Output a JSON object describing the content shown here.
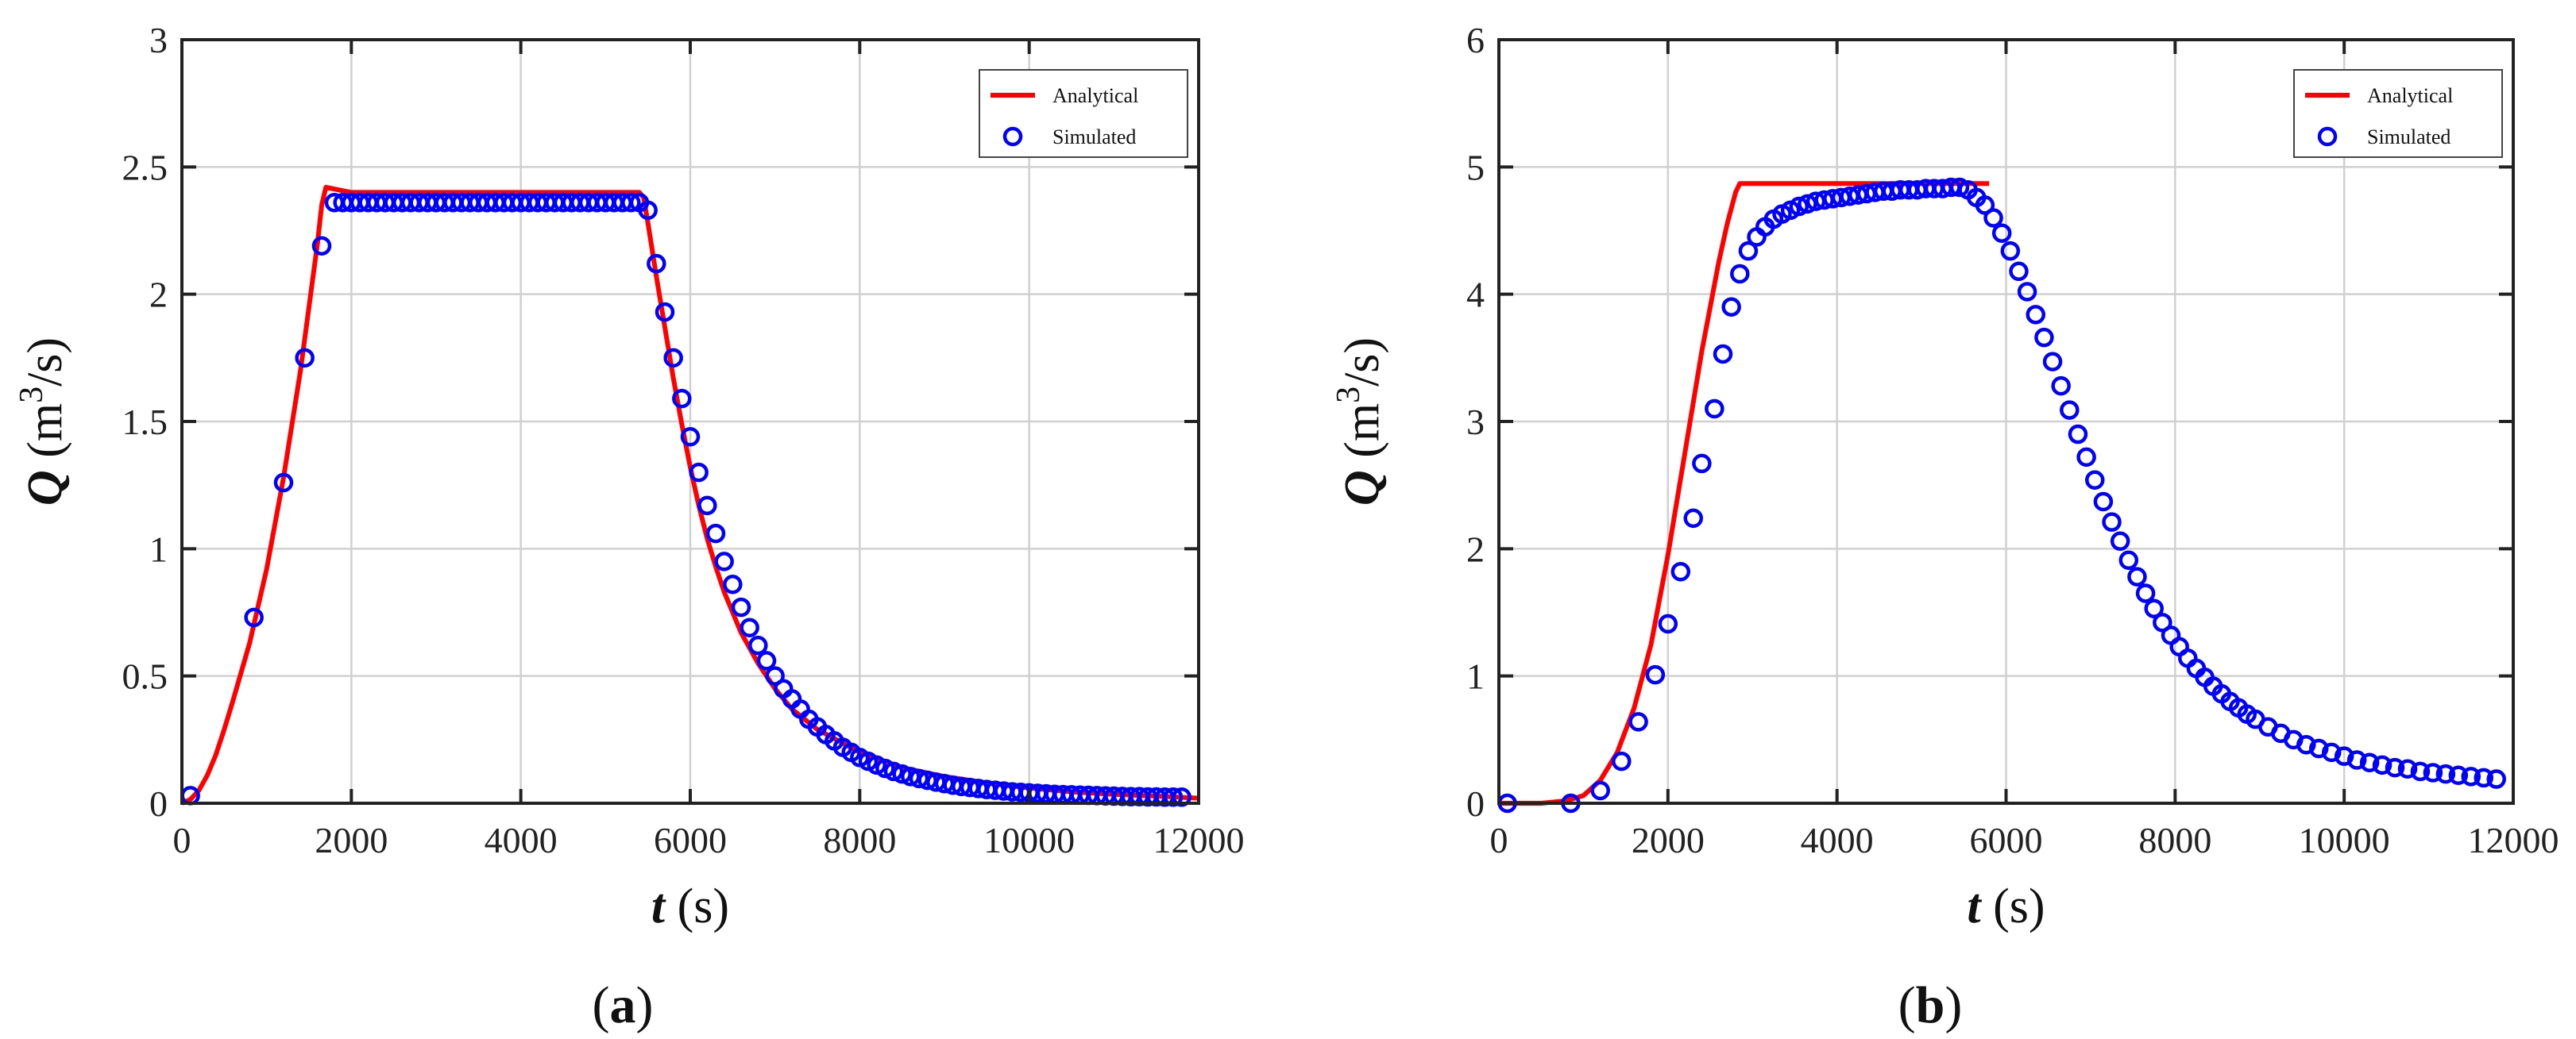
{
  "figure": {
    "panels": [
      {
        "caption": "a"
      },
      {
        "caption": "b"
      }
    ]
  },
  "chart_data": [
    {
      "type": "line",
      "panel_label": "(a)",
      "xlabel": {
        "var": "t",
        "unit": "(s)"
      },
      "ylabel": {
        "var": "Q",
        "unit_pre": "(m",
        "unit_sup": "3",
        "unit_post": "/s)"
      },
      "xlim": [
        0,
        12000
      ],
      "ylim": [
        0,
        3
      ],
      "xticks": [
        0,
        2000,
        4000,
        6000,
        8000,
        10000,
        12000
      ],
      "yticks": [
        0,
        0.5,
        1,
        1.5,
        2,
        2.5,
        3
      ],
      "ytick_labels": [
        "0",
        "0.5",
        "1",
        "1.5",
        "2",
        "2.5",
        "3"
      ],
      "grid": true,
      "legend_position": "top-right",
      "series": [
        {
          "name": "Analytical",
          "style": "line",
          "color": "#ff0000",
          "x": [
            0,
            100,
            200,
            300,
            400,
            500,
            600,
            800,
            1000,
            1200,
            1400,
            1600,
            1650,
            1700,
            2000,
            3000,
            4000,
            5000,
            5400,
            5450,
            5500,
            5600,
            5700,
            5800,
            5900,
            6000,
            6100,
            6200,
            6300,
            6400,
            6600,
            6800,
            7000,
            7200,
            7500,
            8000,
            8500,
            9000,
            9500,
            10000,
            10500,
            11000,
            11500,
            12000
          ],
          "y": [
            0,
            0.015,
            0.05,
            0.11,
            0.19,
            0.29,
            0.4,
            0.63,
            0.92,
            1.28,
            1.7,
            2.2,
            2.35,
            2.42,
            2.4,
            2.4,
            2.4,
            2.4,
            2.4,
            2.38,
            2.28,
            2.07,
            1.87,
            1.67,
            1.49,
            1.32,
            1.17,
            1.04,
            0.93,
            0.83,
            0.67,
            0.55,
            0.45,
            0.37,
            0.29,
            0.2,
            0.14,
            0.105,
            0.08,
            0.06,
            0.045,
            0.035,
            0.028,
            0.02
          ]
        },
        {
          "name": "Simulated",
          "style": "marker",
          "color": "#0000ff",
          "x": [
            100,
            850,
            1200,
            1450,
            1650,
            1800,
            1900,
            2000,
            2100,
            2200,
            2300,
            2400,
            2500,
            2600,
            2700,
            2800,
            2900,
            3000,
            3100,
            3200,
            3300,
            3400,
            3500,
            3600,
            3700,
            3800,
            3900,
            4000,
            4100,
            4200,
            4300,
            4400,
            4500,
            4600,
            4700,
            4800,
            4900,
            5000,
            5100,
            5200,
            5300,
            5400,
            5500,
            5600,
            5700,
            5800,
            5900,
            6000,
            6100,
            6200,
            6300,
            6400,
            6500,
            6600,
            6700,
            6800,
            6900,
            7000,
            7100,
            7200,
            7300,
            7400,
            7500,
            7600,
            7700,
            7800,
            7900,
            8000,
            8100,
            8200,
            8300,
            8400,
            8500,
            8600,
            8700,
            8800,
            8900,
            9000,
            9100,
            9200,
            9300,
            9400,
            9500,
            9600,
            9700,
            9800,
            9900,
            10000,
            10100,
            10200,
            10300,
            10400,
            10500,
            10600,
            10700,
            10800,
            10900,
            11000,
            11100,
            11200,
            11300,
            11400,
            11500,
            11600,
            11700,
            11800
          ],
          "y": [
            0.03,
            0.73,
            1.26,
            1.75,
            2.19,
            2.36,
            2.36,
            2.36,
            2.36,
            2.36,
            2.36,
            2.36,
            2.36,
            2.36,
            2.36,
            2.36,
            2.36,
            2.36,
            2.36,
            2.36,
            2.36,
            2.36,
            2.36,
            2.36,
            2.36,
            2.36,
            2.36,
            2.36,
            2.36,
            2.36,
            2.36,
            2.36,
            2.36,
            2.36,
            2.36,
            2.36,
            2.36,
            2.36,
            2.36,
            2.36,
            2.36,
            2.36,
            2.33,
            2.12,
            1.93,
            1.75,
            1.59,
            1.44,
            1.3,
            1.17,
            1.06,
            0.95,
            0.86,
            0.77,
            0.69,
            0.62,
            0.56,
            0.5,
            0.45,
            0.41,
            0.37,
            0.33,
            0.3,
            0.27,
            0.245,
            0.22,
            0.2,
            0.18,
            0.165,
            0.15,
            0.137,
            0.125,
            0.115,
            0.105,
            0.097,
            0.09,
            0.083,
            0.077,
            0.071,
            0.066,
            0.062,
            0.058,
            0.054,
            0.051,
            0.048,
            0.045,
            0.043,
            0.041,
            0.039,
            0.037,
            0.035,
            0.034,
            0.033,
            0.032,
            0.031,
            0.03,
            0.029,
            0.028,
            0.027,
            0.026,
            0.026,
            0.025,
            0.025,
            0.024,
            0.024,
            0.024
          ]
        }
      ]
    },
    {
      "type": "line",
      "panel_label": "(b)",
      "xlabel": {
        "var": "t",
        "unit": "(s)"
      },
      "ylabel": {
        "var": "Q",
        "unit_pre": "(m",
        "unit_sup": "3",
        "unit_post": "/s)"
      },
      "xlim": [
        0,
        12000
      ],
      "ylim": [
        0,
        6
      ],
      "xticks": [
        0,
        2000,
        4000,
        6000,
        8000,
        10000,
        12000
      ],
      "yticks": [
        0,
        1,
        2,
        3,
        4,
        5,
        6
      ],
      "ytick_labels": [
        "0",
        "1",
        "2",
        "3",
        "4",
        "5",
        "6"
      ],
      "grid": true,
      "legend_position": "top-right",
      "series": [
        {
          "name": "Analytical",
          "style": "line",
          "color": "#ff0000",
          "x": [
            0,
            500,
            800,
            1000,
            1200,
            1400,
            1600,
            1800,
            2000,
            2200,
            2400,
            2600,
            2700,
            2800,
            2850,
            3000,
            4000,
            5000,
            5800
          ],
          "y": [
            0,
            0,
            0.02,
            0.06,
            0.18,
            0.4,
            0.75,
            1.25,
            1.95,
            2.75,
            3.55,
            4.25,
            4.55,
            4.8,
            4.87,
            4.87,
            4.87,
            4.87,
            4.87
          ]
        },
        {
          "name": "Simulated",
          "style": "marker",
          "color": "#0000ff",
          "x": [
            100,
            850,
            1200,
            1450,
            1650,
            1850,
            2000,
            2150,
            2300,
            2400,
            2550,
            2650,
            2750,
            2850,
            2950,
            3050,
            3150,
            3250,
            3350,
            3450,
            3550,
            3650,
            3750,
            3850,
            3950,
            4050,
            4150,
            4250,
            4350,
            4450,
            4550,
            4650,
            4750,
            4850,
            4950,
            5050,
            5150,
            5250,
            5350,
            5450,
            5550,
            5650,
            5750,
            5850,
            5950,
            6050,
            6150,
            6250,
            6350,
            6450,
            6550,
            6650,
            6750,
            6850,
            6950,
            7050,
            7150,
            7250,
            7350,
            7450,
            7550,
            7650,
            7750,
            7850,
            7950,
            8050,
            8150,
            8250,
            8350,
            8450,
            8550,
            8650,
            8750,
            8850,
            8950,
            9100,
            9250,
            9400,
            9550,
            9700,
            9850,
            10000,
            10150,
            10300,
            10450,
            10600,
            10750,
            10900,
            11050,
            11200,
            11350,
            11500,
            11650,
            11800
          ],
          "y": [
            0,
            0,
            0.1,
            0.33,
            0.64,
            1.01,
            1.41,
            1.82,
            2.24,
            2.67,
            3.1,
            3.53,
            3.9,
            4.16,
            4.34,
            4.45,
            4.53,
            4.59,
            4.63,
            4.66,
            4.69,
            4.71,
            4.73,
            4.74,
            4.75,
            4.76,
            4.77,
            4.78,
            4.79,
            4.8,
            4.81,
            4.81,
            4.82,
            4.82,
            4.82,
            4.83,
            4.83,
            4.83,
            4.84,
            4.84,
            4.82,
            4.76,
            4.7,
            4.6,
            4.48,
            4.34,
            4.18,
            4.02,
            3.84,
            3.66,
            3.47,
            3.28,
            3.09,
            2.9,
            2.72,
            2.54,
            2.37,
            2.21,
            2.06,
            1.91,
            1.78,
            1.65,
            1.53,
            1.42,
            1.32,
            1.23,
            1.14,
            1.06,
            0.99,
            0.92,
            0.86,
            0.8,
            0.75,
            0.7,
            0.66,
            0.6,
            0.55,
            0.5,
            0.46,
            0.43,
            0.4,
            0.37,
            0.34,
            0.32,
            0.3,
            0.28,
            0.27,
            0.25,
            0.24,
            0.23,
            0.22,
            0.21,
            0.2,
            0.19
          ]
        }
      ]
    }
  ]
}
